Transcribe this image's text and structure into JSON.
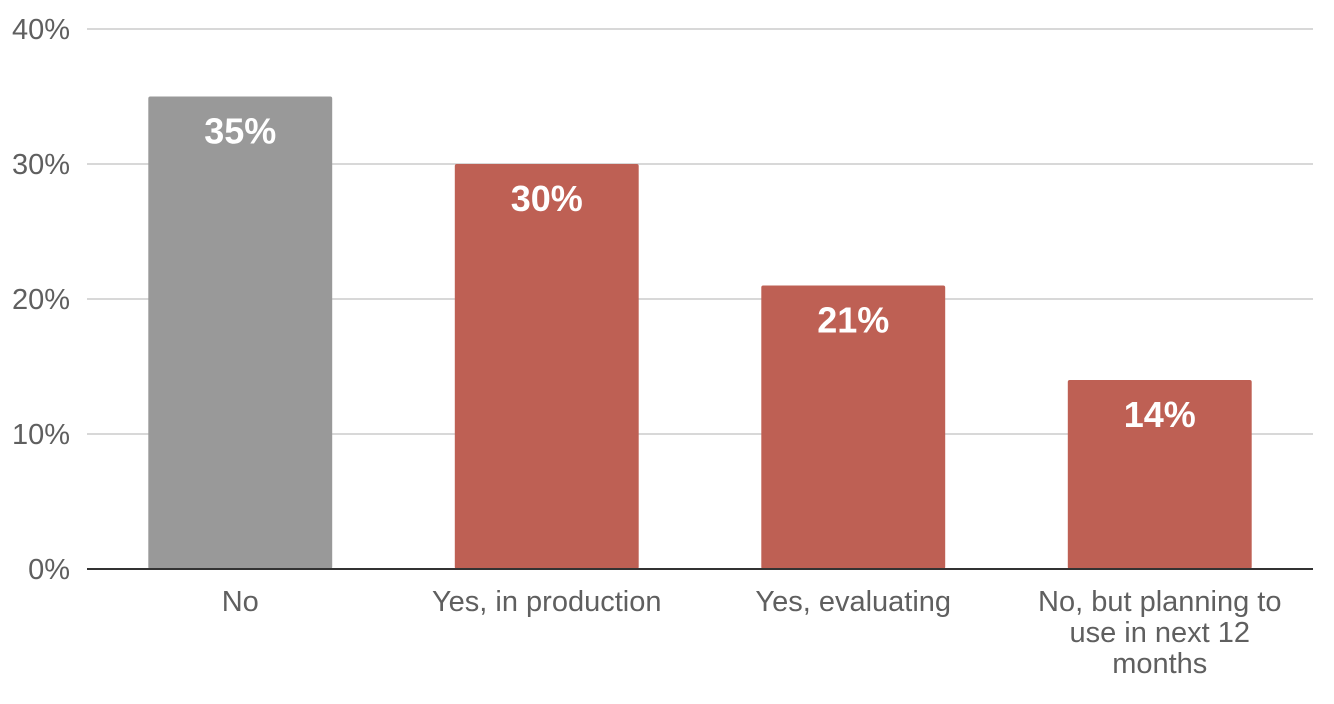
{
  "chart_data": {
    "type": "bar",
    "categories": [
      "No",
      "Yes, in production",
      "Yes, evaluating",
      "No, but planning to use in next 12 months"
    ],
    "category_label_lines": [
      [
        "No"
      ],
      [
        "Yes, in production"
      ],
      [
        "Yes, evaluating"
      ],
      [
        "No, but planning to",
        "use in next 12",
        "months"
      ]
    ],
    "values": [
      35,
      30,
      21,
      14
    ],
    "data_labels": [
      "35%",
      "30%",
      "21%",
      "14%"
    ],
    "bar_colors": [
      "#999999",
      "#be6054",
      "#be6054",
      "#be6054"
    ],
    "ylim": [
      0,
      40
    ],
    "yticks": [
      0,
      10,
      20,
      30,
      40
    ],
    "ytick_labels": [
      "0%",
      "10%",
      "20%",
      "30%",
      "40%"
    ],
    "grid": true,
    "legend": "none"
  }
}
